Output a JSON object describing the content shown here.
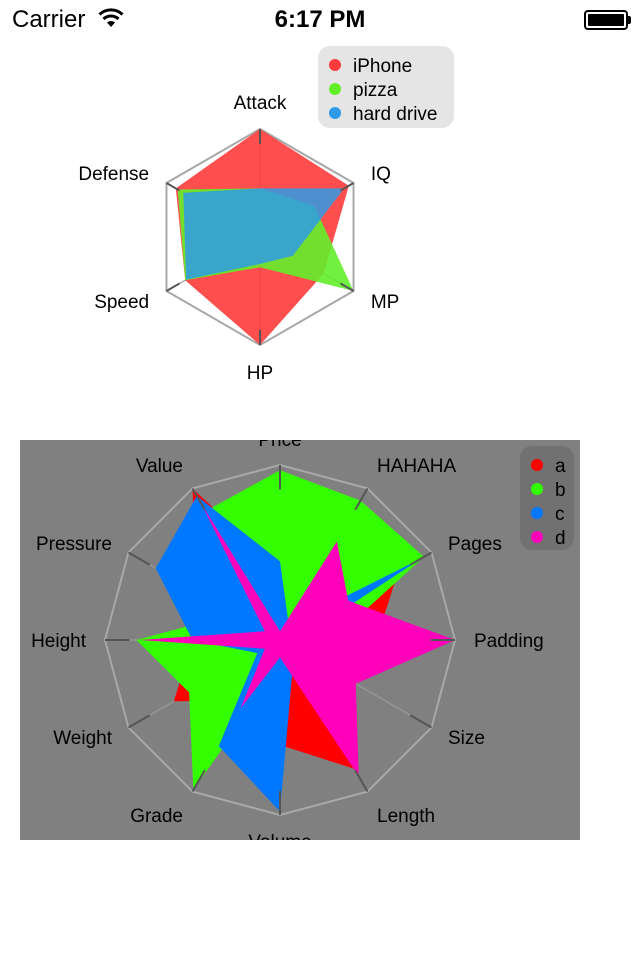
{
  "status_bar": {
    "carrier": "Carrier",
    "time": "6:17 PM",
    "wifi_icon": "wifi-icon",
    "battery_icon": "battery-icon"
  },
  "chart_data": [
    {
      "type": "radar",
      "axes": [
        "Attack",
        "IQ",
        "MP",
        "HP",
        "Speed",
        "Defense"
      ],
      "range": [
        0,
        1
      ],
      "grid": "outer-ring-and-spokes",
      "legend_position": "top-right",
      "series": [
        {
          "name": "iPhone",
          "color": "#ff3b3b",
          "opacity": 0.9,
          "values": [
            1.0,
            0.95,
            0.68,
            1.0,
            0.8,
            0.9
          ]
        },
        {
          "name": "pizza",
          "color": "#63ee2a",
          "opacity": 0.9,
          "values": [
            0.45,
            0.58,
            1.0,
            0.28,
            0.8,
            0.88
          ]
        },
        {
          "name": "hard drive",
          "color": "#2f9be8",
          "opacity": 0.85,
          "values": [
            0.45,
            0.9,
            0.35,
            0.25,
            0.79,
            0.82
          ]
        }
      ]
    },
    {
      "type": "radar",
      "axes": [
        "Price",
        "HAHAHA",
        "Pages",
        "Padding",
        "Size",
        "Length",
        "Volume",
        "Grade",
        "Weight",
        "Height",
        "Pressure",
        "Value"
      ],
      "range": [
        0,
        1
      ],
      "grid": "outer-ring-and-spokes",
      "background": "#808080",
      "legend_position": "top-right",
      "series": [
        {
          "name": "a",
          "color": "#ff0000",
          "opacity": 1,
          "values": [
            0.4,
            0.5,
            0.78,
            0.55,
            0.5,
            0.85,
            0.6,
            0.4,
            0.7,
            0.5,
            0.55,
            1.0
          ]
        },
        {
          "name": "b",
          "color": "#33ff00",
          "opacity": 1,
          "values": [
            0.97,
            0.92,
            0.95,
            0.3,
            0.2,
            0.1,
            0.15,
            0.99,
            0.6,
            0.82,
            0.3,
            0.85
          ]
        },
        {
          "name": "c",
          "color": "#0077ff",
          "opacity": 1,
          "values": [
            0.45,
            0.1,
            0.93,
            0.1,
            0.15,
            0.15,
            0.98,
            0.7,
            0.15,
            0.5,
            0.82,
            0.95
          ]
        },
        {
          "name": "d",
          "color": "#ff00bb",
          "opacity": 1,
          "values": [
            0.05,
            0.65,
            0.45,
            1.0,
            0.5,
            0.9,
            0.1,
            0.45,
            0.1,
            0.8,
            0.1,
            0.9
          ]
        }
      ]
    }
  ]
}
